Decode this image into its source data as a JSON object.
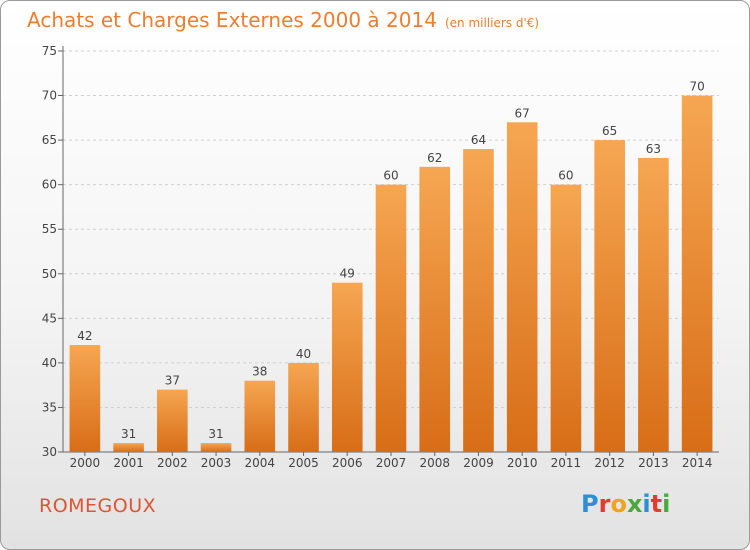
{
  "header": {
    "title": "Achats et Charges Externes 2000 à 2014",
    "subtitle": "(en milliers d'€)"
  },
  "footer": {
    "commune": "ROMEGOUX",
    "logo": "Proxiti",
    "logo_letters": [
      {
        "ch": "P",
        "color": "#2c8fd6"
      },
      {
        "ch": "r",
        "color": "#e8392c"
      },
      {
        "ch": "o",
        "color": "#f2a31b"
      },
      {
        "ch": "x",
        "color": "#4aa83c"
      },
      {
        "ch": "i",
        "color": "#2c8fd6"
      },
      {
        "ch": "t",
        "color": "#e8392c"
      },
      {
        "ch": "i",
        "color": "#4aa83c"
      }
    ]
  },
  "colors": {
    "bar_top": "#f6a652",
    "bar_bottom": "#d86d17",
    "title": "#ee7d2d",
    "commune": "#e0552f"
  },
  "chart_data": {
    "type": "bar",
    "title": "Achats et Charges Externes 2000 à 2014",
    "subtitle": "(en milliers d'€)",
    "categories": [
      "2000",
      "2001",
      "2002",
      "2003",
      "2004",
      "2005",
      "2006",
      "2007",
      "2008",
      "2009",
      "2010",
      "2011",
      "2012",
      "2013",
      "2014"
    ],
    "values": [
      42,
      31,
      37,
      31,
      38,
      40,
      49,
      60,
      62,
      64,
      67,
      60,
      65,
      63,
      70
    ],
    "xlabel": "",
    "ylabel": "",
    "ylim": [
      30,
      75
    ],
    "yticks": [
      30,
      35,
      40,
      45,
      50,
      55,
      60,
      65,
      70,
      75
    ],
    "grid": true,
    "data_labels": true
  }
}
